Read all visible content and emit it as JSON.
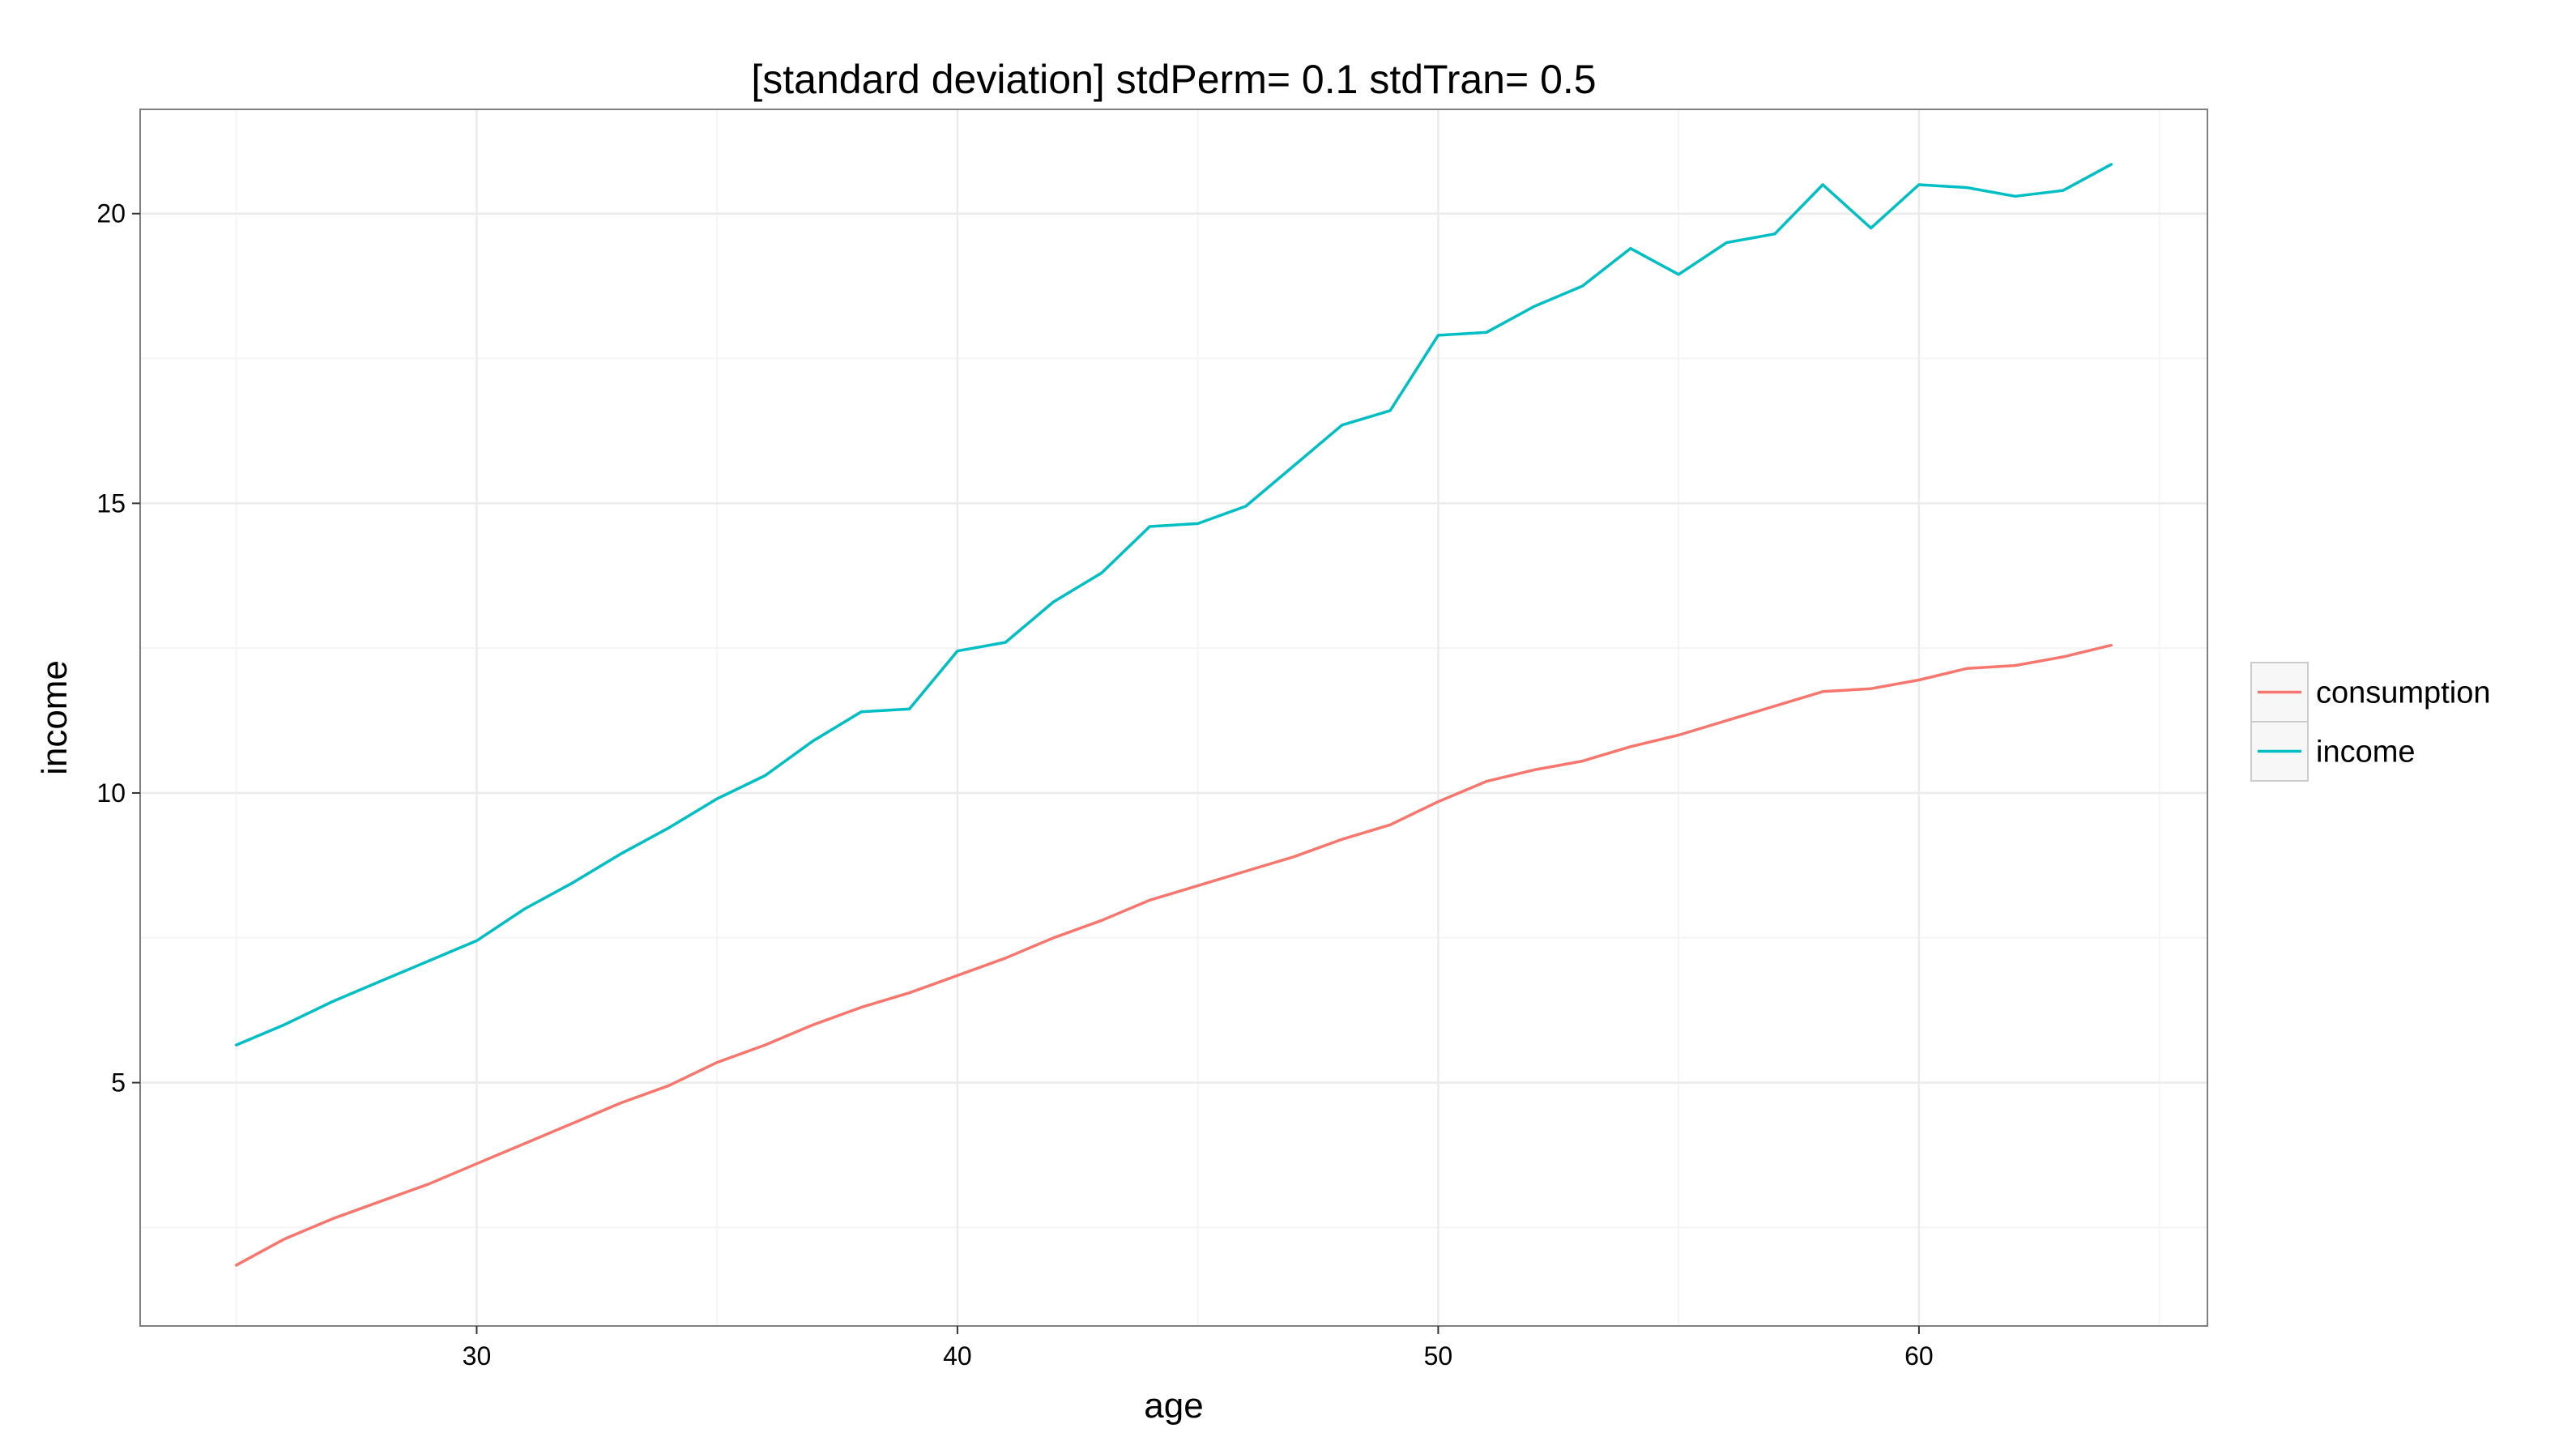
{
  "chart_data": {
    "type": "line",
    "title": "[standard deviation] stdPerm= 0.1 stdTran= 0.5",
    "xlabel": "age",
    "ylabel": "income",
    "xlim": [
      23,
      66
    ],
    "ylim": [
      0.8,
      21.8
    ],
    "x_ticks": [
      30,
      40,
      50,
      60
    ],
    "y_ticks": [
      5,
      10,
      15,
      20
    ],
    "x_tick_labels": [
      "30",
      "40",
      "50",
      "60"
    ],
    "y_tick_labels": [
      "5",
      "10",
      "15",
      "20"
    ],
    "grid": true,
    "legend_position": "right",
    "x": [
      25,
      26,
      27,
      28,
      29,
      30,
      31,
      32,
      33,
      34,
      35,
      36,
      37,
      38,
      39,
      40,
      41,
      42,
      43,
      44,
      45,
      46,
      47,
      48,
      49,
      50,
      51,
      52,
      53,
      54,
      55,
      56,
      57,
      58,
      59,
      60,
      61,
      62,
      63,
      64
    ],
    "series": [
      {
        "name": "consumption",
        "color": "#F8766D",
        "values": [
          1.85,
          2.3,
          2.65,
          2.95,
          3.25,
          3.6,
          3.95,
          4.3,
          4.65,
          4.95,
          5.35,
          5.65,
          6.0,
          6.3,
          6.55,
          6.85,
          7.15,
          7.5,
          7.8,
          8.15,
          8.4,
          8.65,
          8.9,
          9.2,
          9.45,
          9.85,
          10.2,
          10.4,
          10.55,
          10.8,
          11.0,
          11.25,
          11.5,
          11.75,
          11.8,
          11.95,
          12.15,
          12.2,
          12.35,
          12.55
        ]
      },
      {
        "name": "income",
        "color": "#00BFC4",
        "values": [
          5.65,
          6.0,
          6.4,
          6.75,
          7.1,
          7.45,
          8.0,
          8.45,
          8.95,
          9.4,
          9.9,
          10.3,
          10.9,
          11.4,
          11.45,
          12.45,
          12.6,
          13.3,
          13.8,
          14.6,
          14.65,
          14.95,
          15.65,
          16.35,
          16.6,
          17.9,
          17.95,
          18.4,
          18.75,
          19.4,
          18.95,
          19.5,
          19.65,
          20.5,
          19.75,
          20.5,
          20.45,
          20.3,
          20.4,
          20.85
        ]
      }
    ],
    "colors": {
      "panel_border": "#7f7f7f",
      "grid_major": "#ebebeb",
      "grid_minor": "#f5f5f5",
      "background": "#ffffff"
    }
  }
}
